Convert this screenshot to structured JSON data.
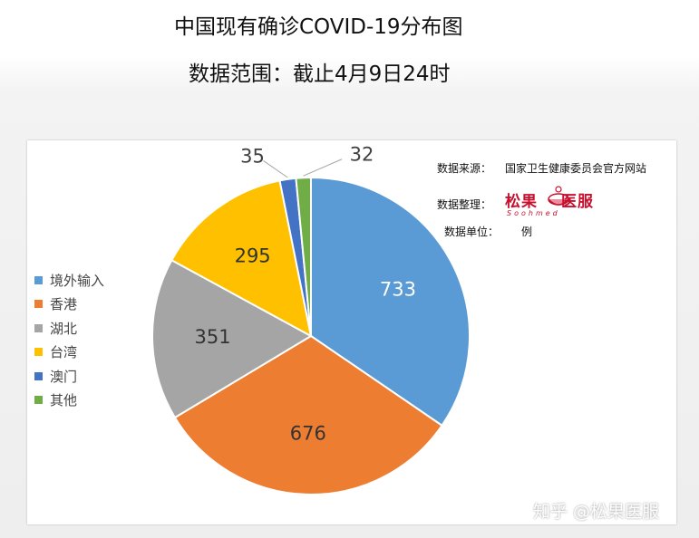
{
  "title_line1": "中国现有确诊COVID-19分布图",
  "title_line2": "数据范围：截止4月9日24时",
  "info": {
    "source_label": "数据来源：",
    "source_value": "国家卫生健康委员会官方网站",
    "compiler_label": "数据整理：",
    "unit_label": "数据单位：",
    "unit_value": "例"
  },
  "logo": {
    "text": "松果医服",
    "sub": "Soohmed",
    "icon": "pot-icon"
  },
  "watermark": "知乎 @松果医服",
  "chart_data": {
    "type": "pie",
    "start_angle": "top, clockwise",
    "legend_position": "left",
    "slices": [
      {
        "label": "境外输入",
        "value": 733,
        "color": "#5b9bd5"
      },
      {
        "label": "香港",
        "value": 676,
        "color": "#ed7d31"
      },
      {
        "label": "湖北",
        "value": 351,
        "color": "#a5a5a5"
      },
      {
        "label": "台湾",
        "value": 295,
        "color": "#ffc000"
      },
      {
        "label": "澳门",
        "value": 35,
        "color": "#4472c4"
      },
      {
        "label": "其他",
        "value": 32,
        "color": "#70ad47"
      }
    ]
  }
}
